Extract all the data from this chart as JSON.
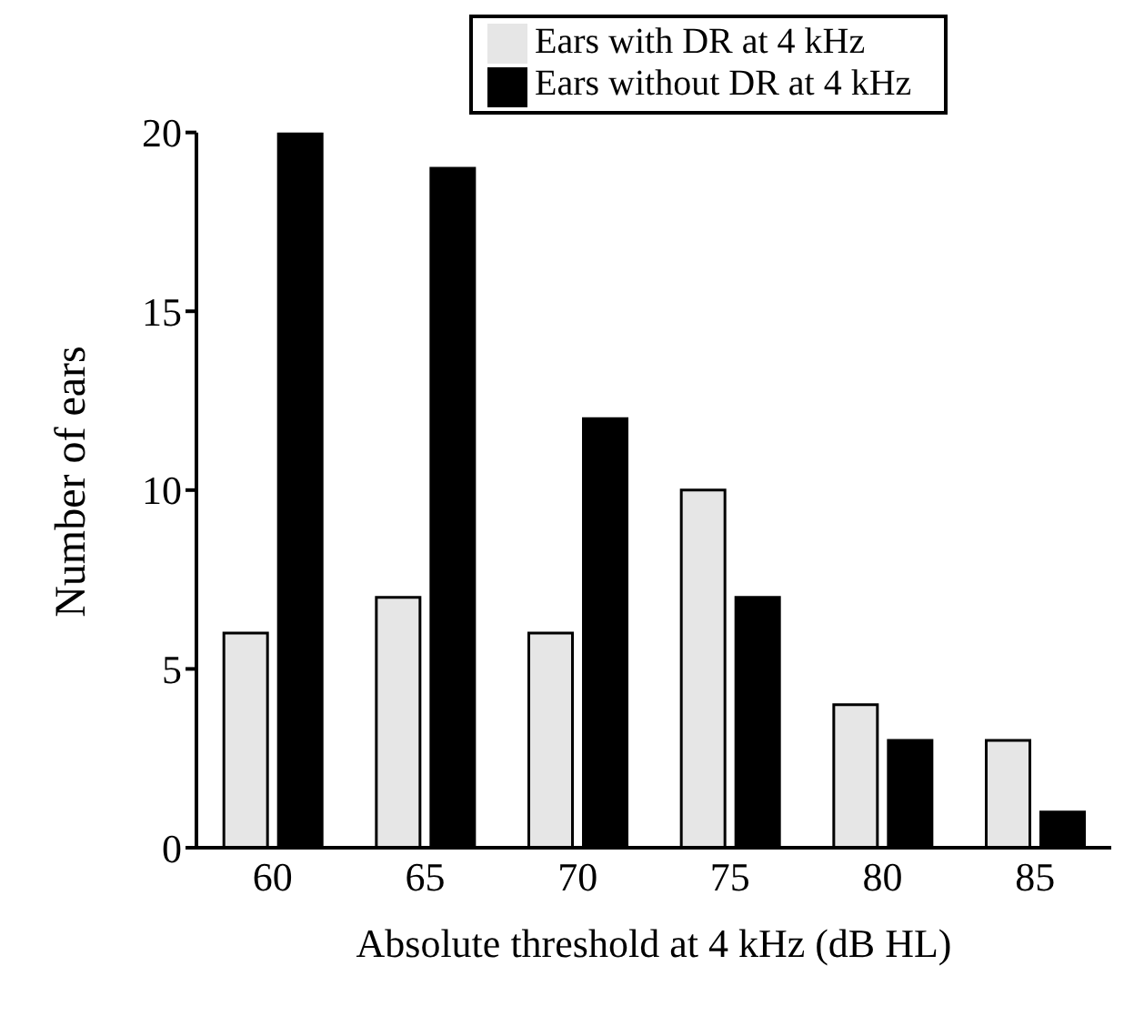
{
  "chart_data": {
    "type": "bar",
    "xlabel": "Absolute threshold at 4 kHz (dB HL)",
    "ylabel": "Number of ears",
    "categories": [
      "60",
      "65",
      "70",
      "75",
      "80",
      "85"
    ],
    "series": [
      {
        "name": "Ears with DR at 4 kHz",
        "color": "#e6e6e6",
        "values": [
          6,
          7,
          6,
          10,
          4,
          3
        ]
      },
      {
        "name": "Ears without DR at 4 kHz",
        "color": "#000000",
        "values": [
          20,
          19,
          12,
          7,
          3,
          1
        ]
      }
    ],
    "ylim": [
      0,
      20
    ],
    "yticks": [
      0,
      5,
      10,
      15,
      20
    ],
    "grid": false,
    "legend": "top"
  }
}
